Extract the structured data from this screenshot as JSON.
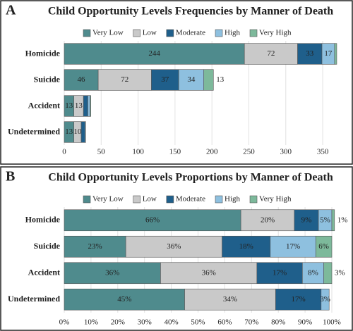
{
  "chart_data": [
    {
      "type": "bar",
      "orientation": "horizontal",
      "stacked": true,
      "panel_label": "A",
      "title": "Child Opportunity Levels Frequencies by Manner of Death",
      "categories": [
        "Homicide",
        "Suicide",
        "Accident",
        "Undetermined"
      ],
      "series": [
        {
          "name": "Very Low",
          "color": "#4f8b8d",
          "values": [
            244,
            46,
            13,
            13
          ],
          "value_labels": [
            "244",
            "46",
            "13",
            "13"
          ]
        },
        {
          "name": "Low",
          "color": "#c9c9c9",
          "values": [
            72,
            72,
            13,
            10
          ],
          "value_labels": [
            "72",
            "72",
            "13",
            "10"
          ]
        },
        {
          "name": "Moderate",
          "color": "#1f5f8b",
          "values": [
            33,
            37,
            6,
            5
          ],
          "value_labels": [
            "33",
            "37",
            null,
            null
          ]
        },
        {
          "name": "High",
          "color": "#8ec0df",
          "values": [
            17,
            34,
            3,
            1
          ],
          "value_labels": [
            "17",
            "34",
            null,
            null
          ]
        },
        {
          "name": "Very High",
          "color": "#7db99b",
          "values": [
            3,
            13,
            1,
            0
          ],
          "value_labels": [
            null,
            "13",
            null,
            null
          ]
        }
      ],
      "xlim": [
        0,
        370
      ],
      "xticks": [
        0,
        50,
        100,
        150,
        200,
        250,
        300,
        350
      ],
      "grid": true,
      "legend": "top"
    },
    {
      "type": "bar",
      "orientation": "horizontal",
      "stacked": true,
      "panel_label": "B",
      "title": "Child Opportunity Levels Proportions by Manner of Death",
      "categories": [
        "Homicide",
        "Suicide",
        "Accident",
        "Undetermined"
      ],
      "series": [
        {
          "name": "Very Low",
          "color": "#4f8b8d",
          "values": [
            66,
            23,
            36,
            45
          ],
          "value_labels": [
            "66%",
            "23%",
            "36%",
            "45%"
          ]
        },
        {
          "name": "Low",
          "color": "#c9c9c9",
          "values": [
            20,
            36,
            36,
            34
          ],
          "value_labels": [
            "20%",
            "36%",
            "36%",
            "34%"
          ]
        },
        {
          "name": "Moderate",
          "color": "#1f5f8b",
          "values": [
            9,
            18,
            17,
            17
          ],
          "value_labels": [
            "9%",
            "18%",
            "17%",
            "17%"
          ]
        },
        {
          "name": "High",
          "color": "#8ec0df",
          "values": [
            5,
            17,
            8,
            3
          ],
          "value_labels": [
            "5%",
            "17%",
            "8%",
            "3%"
          ]
        },
        {
          "name": "Very High",
          "color": "#7db99b",
          "values": [
            1,
            6,
            3,
            0
          ],
          "value_labels": [
            "1%",
            "6%",
            "3%",
            null
          ]
        }
      ],
      "xlim": [
        0,
        100
      ],
      "xticks": [
        {
          "value": 0,
          "label": "0%"
        },
        {
          "value": 10,
          "label": "10%"
        },
        {
          "value": 20,
          "label": "20%"
        },
        {
          "value": 30,
          "label": "30%"
        },
        {
          "value": 40,
          "label": "40%"
        },
        {
          "value": 50,
          "label": "50%"
        },
        {
          "value": 60,
          "label": "60%"
        },
        {
          "value": 70,
          "label": "70%"
        },
        {
          "value": 80,
          "label": "80%"
        },
        {
          "value": 90,
          "label": "90%"
        },
        {
          "value": 100,
          "label": "100%"
        }
      ],
      "grid": true,
      "legend": "top"
    }
  ]
}
